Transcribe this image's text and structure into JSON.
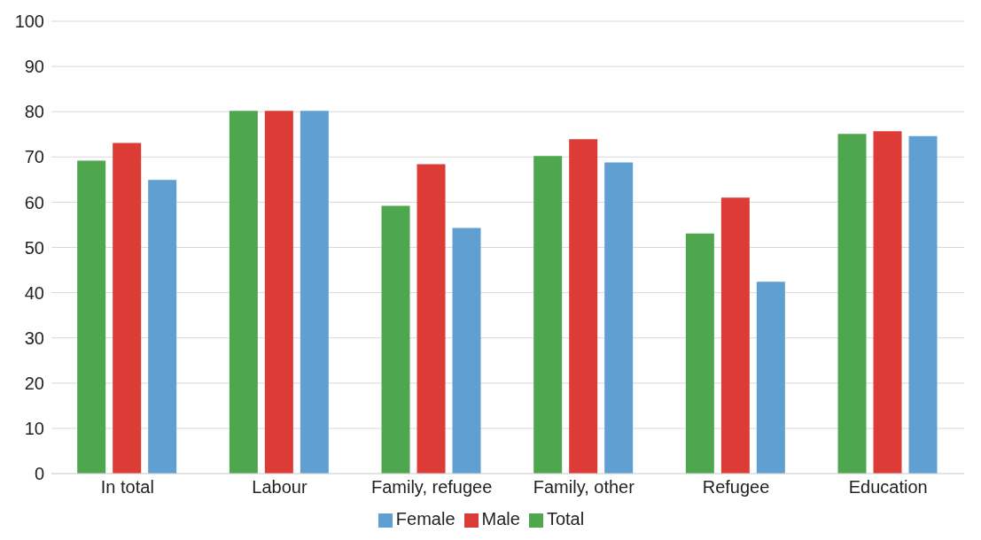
{
  "chart_data": {
    "type": "bar",
    "categories": [
      "In total",
      "Labour",
      "Family, refugee",
      "Family, other",
      "Refugee",
      "Education"
    ],
    "series": [
      {
        "name": "Total",
        "color": "#4ea64f",
        "values": [
          69.2,
          80.2,
          59.2,
          70.2,
          53.1,
          75.1
        ]
      },
      {
        "name": "Male",
        "color": "#dc3b36",
        "values": [
          73.1,
          80.2,
          68.4,
          73.9,
          61,
          75.7
        ]
      },
      {
        "name": "Female",
        "color": "#5f9fd2",
        "values": [
          64.9,
          80.2,
          54.3,
          68.8,
          42.4,
          74.6
        ]
      }
    ],
    "ylim": [
      0,
      100
    ],
    "yticks": [
      0,
      10,
      20,
      30,
      40,
      50,
      60,
      70,
      80,
      90,
      100
    ],
    "grid": "y",
    "legend": "bottom"
  }
}
